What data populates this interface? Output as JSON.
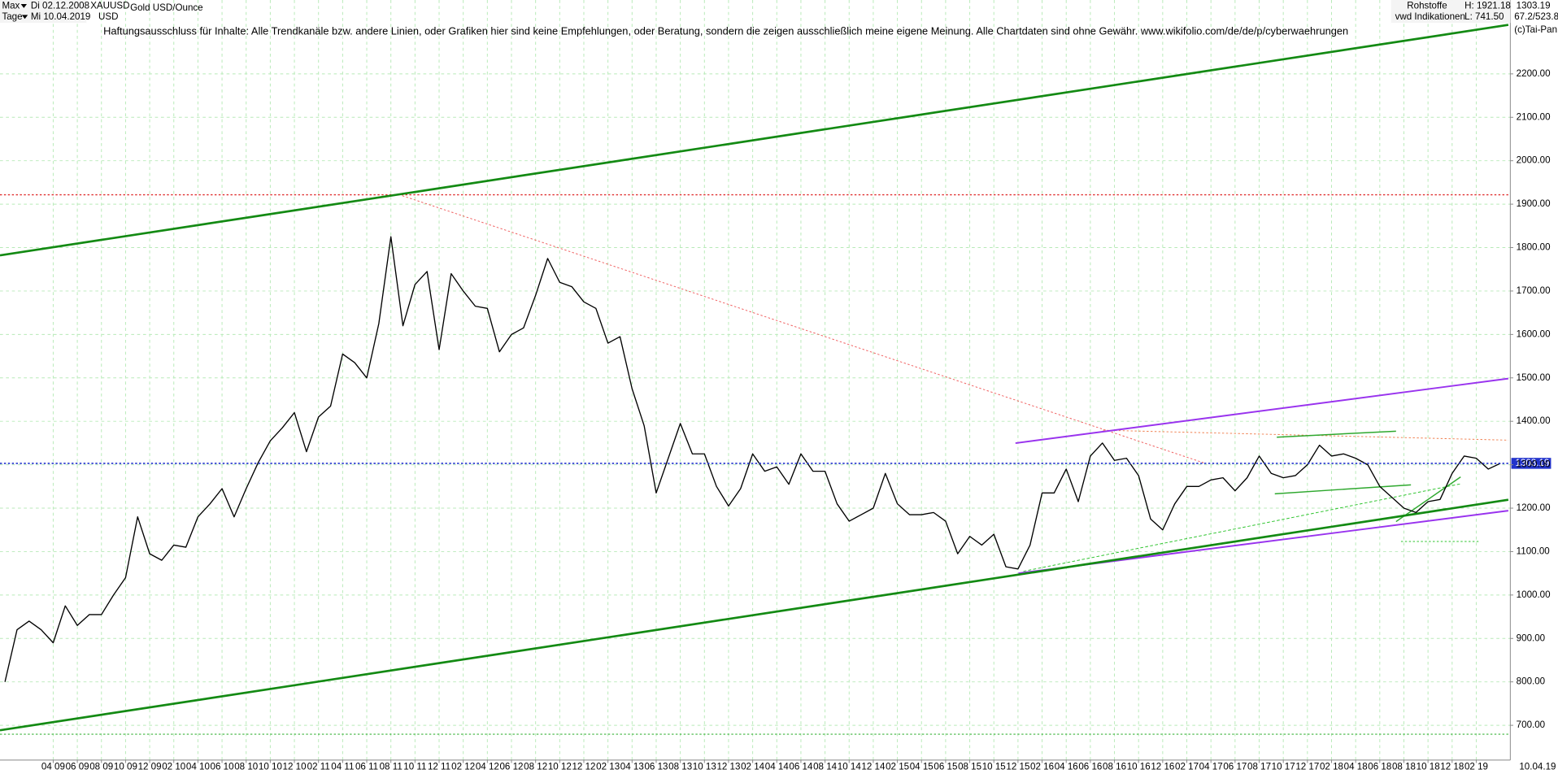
{
  "header": {
    "range": "Max",
    "from": "Di 02.12.2008",
    "period": "Tage",
    "to": "Mi 10.04.2019",
    "currency": "USD",
    "description": "Gold USD/Ounce",
    "disclaimer": "Haftungsausschluss für Inhalte: Alle Trendkanäle bzw. andere Linien, oder Grafiken hier sind keine Empfehlungen, oder Beratung, sondern die zeigen ausschließlich meine eigene Meinung. Alle Chartdaten sind ohne Gewähr.  www.wikifolio.com/de/de/p/cyberwaehrungen",
    "market": "Rohstoffe",
    "source": "vwd Indikationen",
    "high": "H: 1921.18",
    "low": "L: 741.50",
    "ratio": "67.2/523.8",
    "copyright": "(c)Tai-Pan",
    "end_date": "10.04.19"
  },
  "chart_data": {
    "type": "line",
    "x": [
      "2008-12",
      "2009-01",
      "2009-02",
      "2009-03",
      "2009-04",
      "2009-05",
      "2009-06",
      "2009-07",
      "2009-08",
      "2009-09",
      "2009-10",
      "2009-11",
      "2009-12",
      "2010-01",
      "2010-02",
      "2010-03",
      "2010-04",
      "2010-05",
      "2010-06",
      "2010-07",
      "2010-08",
      "2010-09",
      "2010-10",
      "2010-11",
      "2010-12",
      "2011-01",
      "2011-02",
      "2011-03",
      "2011-04",
      "2011-05",
      "2011-06",
      "2011-07",
      "2011-08",
      "2011-09",
      "2011-10",
      "2011-11",
      "2011-12",
      "2012-01",
      "2012-02",
      "2012-03",
      "2012-04",
      "2012-05",
      "2012-06",
      "2012-07",
      "2012-08",
      "2012-09",
      "2012-10",
      "2012-11",
      "2012-12",
      "2013-01",
      "2013-02",
      "2013-03",
      "2013-04",
      "2013-05",
      "2013-06",
      "2013-07",
      "2013-08",
      "2013-09",
      "2013-10",
      "2013-11",
      "2013-12",
      "2014-01",
      "2014-02",
      "2014-03",
      "2014-04",
      "2014-05",
      "2014-06",
      "2014-07",
      "2014-08",
      "2014-09",
      "2014-10",
      "2014-11",
      "2014-12",
      "2015-01",
      "2015-02",
      "2015-03",
      "2015-04",
      "2015-05",
      "2015-06",
      "2015-07",
      "2015-08",
      "2015-09",
      "2015-10",
      "2015-11",
      "2015-12",
      "2016-01",
      "2016-02",
      "2016-03",
      "2016-04",
      "2016-05",
      "2016-06",
      "2016-07",
      "2016-08",
      "2016-09",
      "2016-10",
      "2016-11",
      "2016-12",
      "2017-01",
      "2017-02",
      "2017-03",
      "2017-04",
      "2017-05",
      "2017-06",
      "2017-07",
      "2017-08",
      "2017-09",
      "2017-10",
      "2017-11",
      "2017-12",
      "2018-01",
      "2018-02",
      "2018-03",
      "2018-04",
      "2018-05",
      "2018-06",
      "2018-07",
      "2018-08",
      "2018-09",
      "2018-10",
      "2018-11",
      "2018-12",
      "2019-01",
      "2019-02",
      "2019-03",
      "2019-04"
    ],
    "series": [
      {
        "name": "XAUUSD",
        "color": "#000000",
        "values": [
          800,
          920,
          940,
          920,
          890,
          975,
          930,
          955,
          955,
          1000,
          1040,
          1180,
          1095,
          1080,
          1115,
          1110,
          1180,
          1210,
          1245,
          1180,
          1245,
          1305,
          1355,
          1385,
          1420,
          1330,
          1410,
          1435,
          1555,
          1535,
          1500,
          1625,
          1825,
          1620,
          1715,
          1745,
          1565,
          1740,
          1700,
          1665,
          1660,
          1560,
          1600,
          1615,
          1690,
          1775,
          1720,
          1710,
          1675,
          1660,
          1580,
          1595,
          1475,
          1390,
          1235,
          1315,
          1395,
          1325,
          1325,
          1250,
          1205,
          1245,
          1325,
          1285,
          1295,
          1255,
          1325,
          1285,
          1285,
          1210,
          1170,
          1185,
          1200,
          1280,
          1210,
          1185,
          1185,
          1190,
          1170,
          1095,
          1135,
          1115,
          1140,
          1065,
          1060,
          1115,
          1235,
          1235,
          1290,
          1215,
          1320,
          1350,
          1310,
          1315,
          1275,
          1175,
          1150,
          1210,
          1250,
          1250,
          1265,
          1270,
          1240,
          1270,
          1320,
          1280,
          1270,
          1275,
          1300,
          1345,
          1320,
          1325,
          1315,
          1300,
          1250,
          1225,
          1200,
          1190,
          1215,
          1220,
          1280,
          1320,
          1315,
          1290,
          1303.19
        ]
      }
    ],
    "xlim": [
      "2008-12",
      "2019-04"
    ],
    "ylim": [
      620,
      2370
    ],
    "yticks": [
      {
        "value": 700,
        "label": "700.00"
      },
      {
        "value": 800,
        "label": "800.00"
      },
      {
        "value": 900,
        "label": "900.00"
      },
      {
        "value": 1000,
        "label": "1000.00"
      },
      {
        "value": 1100,
        "label": "1100.00"
      },
      {
        "value": 1200,
        "label": "1200.00"
      },
      {
        "value": 1300,
        "label": "1300.00"
      },
      {
        "value": 1400,
        "label": "1400.00"
      },
      {
        "value": 1500,
        "label": "1500.00"
      },
      {
        "value": 1600,
        "label": "1600.00"
      },
      {
        "value": 1700,
        "label": "1700.00"
      },
      {
        "value": 1800,
        "label": "1800.00"
      },
      {
        "value": 1900,
        "label": "1900.00"
      },
      {
        "value": 2000,
        "label": "2000.00"
      },
      {
        "value": 2100,
        "label": "2100.00"
      },
      {
        "value": 2200,
        "label": "2200.00"
      }
    ],
    "xticks": [
      {
        "value": "2009-04",
        "label": "04 09"
      },
      {
        "value": "2009-06",
        "label": "06 09"
      },
      {
        "value": "2009-08",
        "label": "08 09"
      },
      {
        "value": "2009-10",
        "label": "10 09"
      },
      {
        "value": "2009-12",
        "label": "12 09"
      },
      {
        "value": "2010-02",
        "label": "02 10"
      },
      {
        "value": "2010-04",
        "label": "04 10"
      },
      {
        "value": "2010-06",
        "label": "06 10"
      },
      {
        "value": "2010-08",
        "label": "08 10"
      },
      {
        "value": "2010-10",
        "label": "10 10"
      },
      {
        "value": "2010-12",
        "label": "12 10"
      },
      {
        "value": "2011-02",
        "label": "02 11"
      },
      {
        "value": "2011-04",
        "label": "04 11"
      },
      {
        "value": "2011-06",
        "label": "06 11"
      },
      {
        "value": "2011-08",
        "label": "08 11"
      },
      {
        "value": "2011-10",
        "label": "10 11"
      },
      {
        "value": "2011-12",
        "label": "12 11"
      },
      {
        "value": "2012-02",
        "label": "02 12"
      },
      {
        "value": "2012-04",
        "label": "04 12"
      },
      {
        "value": "2012-06",
        "label": "06 12"
      },
      {
        "value": "2012-08",
        "label": "08 12"
      },
      {
        "value": "2012-10",
        "label": "10 12"
      },
      {
        "value": "2012-12",
        "label": "12 12"
      },
      {
        "value": "2013-02",
        "label": "02 13"
      },
      {
        "value": "2013-04",
        "label": "04 13"
      },
      {
        "value": "2013-06",
        "label": "06 13"
      },
      {
        "value": "2013-08",
        "label": "08 13"
      },
      {
        "value": "2013-10",
        "label": "10 13"
      },
      {
        "value": "2013-12",
        "label": "12 13"
      },
      {
        "value": "2014-02",
        "label": "02 14"
      },
      {
        "value": "2014-04",
        "label": "04 14"
      },
      {
        "value": "2014-06",
        "label": "06 14"
      },
      {
        "value": "2014-08",
        "label": "08 14"
      },
      {
        "value": "2014-10",
        "label": "10 14"
      },
      {
        "value": "2014-12",
        "label": "12 14"
      },
      {
        "value": "2015-02",
        "label": "02 15"
      },
      {
        "value": "2015-04",
        "label": "04 15"
      },
      {
        "value": "2015-06",
        "label": "06 15"
      },
      {
        "value": "2015-08",
        "label": "08 15"
      },
      {
        "value": "2015-10",
        "label": "10 15"
      },
      {
        "value": "2015-12",
        "label": "12 15"
      },
      {
        "value": "2016-02",
        "label": "02 16"
      },
      {
        "value": "2016-04",
        "label": "04 16"
      },
      {
        "value": "2016-06",
        "label": "06 16"
      },
      {
        "value": "2016-08",
        "label": "08 16"
      },
      {
        "value": "2016-10",
        "label": "10 16"
      },
      {
        "value": "2016-12",
        "label": "12 16"
      },
      {
        "value": "2017-02",
        "label": "02 17"
      },
      {
        "value": "2017-04",
        "label": "04 17"
      },
      {
        "value": "2017-06",
        "label": "06 17"
      },
      {
        "value": "2017-08",
        "label": "08 17"
      },
      {
        "value": "2017-10",
        "label": "10 17"
      },
      {
        "value": "2017-12",
        "label": "12 17"
      },
      {
        "value": "2018-02",
        "label": "02 18"
      },
      {
        "value": "2018-04",
        "label": "04 18"
      },
      {
        "value": "2018-06",
        "label": "06 18"
      },
      {
        "value": "2018-08",
        "label": "08 18"
      },
      {
        "value": "2018-10",
        "label": "10 18"
      },
      {
        "value": "2018-12",
        "label": "12 18"
      },
      {
        "value": "2019-02",
        "label": "02 19"
      }
    ],
    "grid": true
  }
}
